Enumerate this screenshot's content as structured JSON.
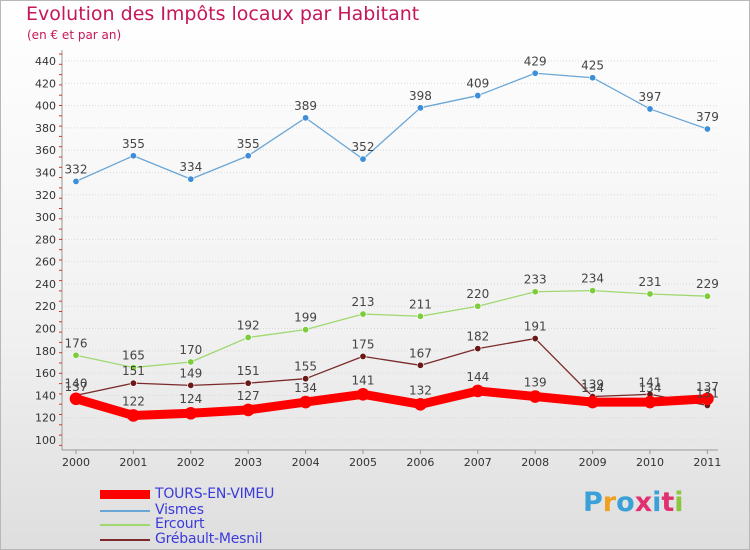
{
  "header": {
    "title": "Evolution des Impôts locaux par Habitant",
    "subtitle": "(en € et par an)"
  },
  "logo": {
    "text": "Proxiti",
    "colors": [
      "#3aa0d8",
      "#f0a020",
      "#3aa0d8",
      "#e03070",
      "#3aa0d8",
      "#e03070",
      "#8cc63f"
    ]
  },
  "chart_data": {
    "type": "line",
    "title": "Evolution des Impôts locaux par Habitant",
    "subtitle": "(en € et par an)",
    "xlabel": "",
    "ylabel": "",
    "categories": [
      "2000",
      "2001",
      "2002",
      "2003",
      "2004",
      "2005",
      "2006",
      "2007",
      "2008",
      "2009",
      "2010",
      "2011"
    ],
    "ylim": [
      100,
      440
    ],
    "yticks": [
      100,
      120,
      140,
      160,
      180,
      200,
      220,
      240,
      260,
      280,
      300,
      320,
      340,
      360,
      380,
      400,
      420,
      440
    ],
    "grid": "horizontal dotted",
    "legend_position": "bottom-left",
    "series": [
      {
        "name": "TOURS-EN-VIMEU",
        "color": "#ff0000",
        "marker": "#ff0000",
        "width": 9,
        "values": [
          137,
          122,
          124,
          127,
          134,
          141,
          132,
          144,
          139,
          134,
          134,
          137
        ],
        "labels": [
          "137",
          "122",
          "124",
          "127",
          "134",
          "141",
          "132",
          "144",
          "139",
          "134",
          "134",
          "137"
        ]
      },
      {
        "name": "Vismes",
        "color": "#6aa6d6",
        "marker": "#3d8ed8",
        "width": 1.3,
        "values": [
          332,
          355,
          334,
          355,
          389,
          352,
          398,
          409,
          429,
          425,
          397,
          379
        ],
        "labels": [
          "332",
          "355",
          "334",
          "355",
          "389",
          "352",
          "398",
          "409",
          "429",
          "425",
          "397",
          "379"
        ]
      },
      {
        "name": "Ercourt",
        "color": "#9ed86e",
        "marker": "#7ccc3c",
        "width": 1.3,
        "values": [
          176,
          165,
          170,
          192,
          199,
          213,
          211,
          220,
          233,
          234,
          231,
          229
        ],
        "labels": [
          "176",
          "165",
          "170",
          "192",
          "199",
          "213",
          "211",
          "220",
          "233",
          "234",
          "231",
          "229"
        ]
      },
      {
        "name": "Grébault-Mesnil",
        "color": "#7a2a2a",
        "marker": "#6a1818",
        "width": 1.3,
        "values": [
          140,
          151,
          149,
          151,
          155,
          175,
          167,
          182,
          191,
          139,
          141,
          131
        ],
        "labels": [
          "140",
          "151",
          "149",
          "151",
          "155",
          "175",
          "167",
          "182",
          "191",
          "139",
          "141",
          "131"
        ]
      }
    ]
  }
}
